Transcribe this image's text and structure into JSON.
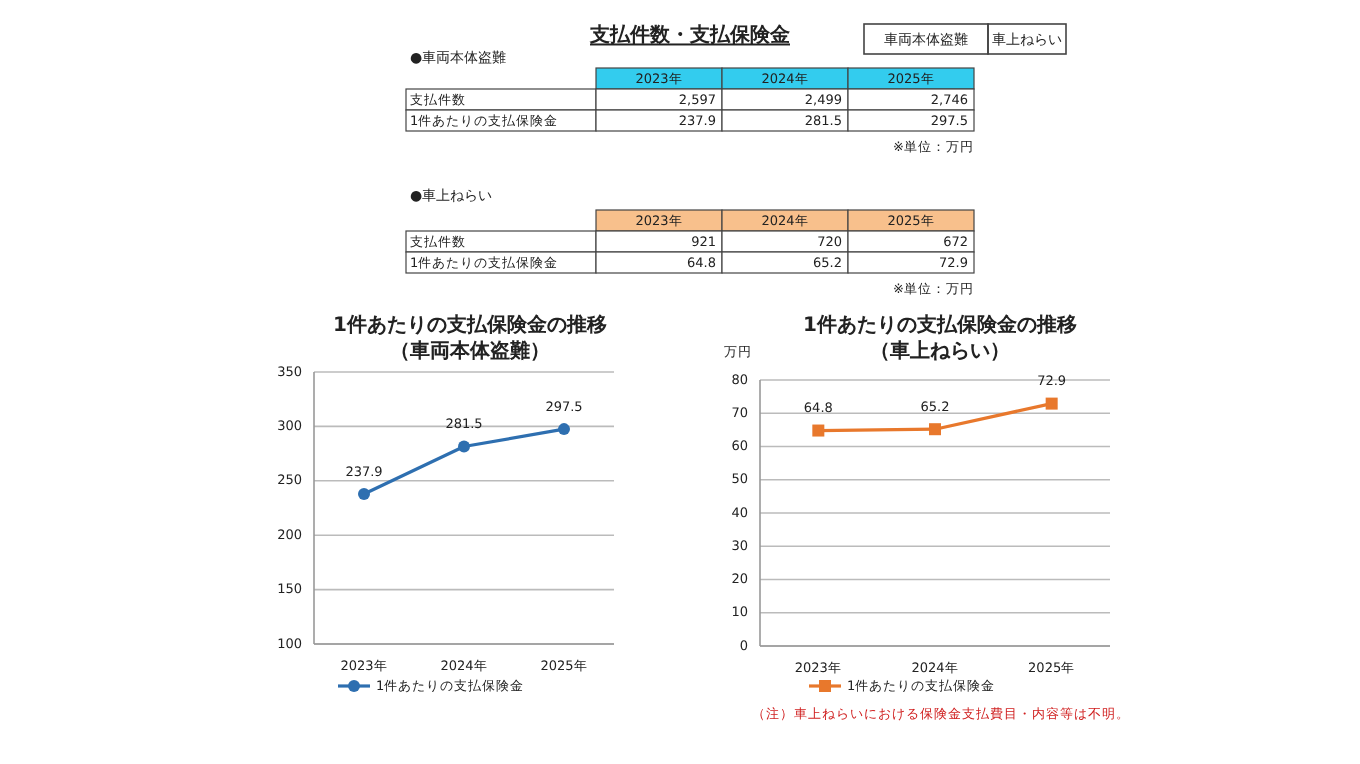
{
  "chart_data": [
    {
      "type": "other",
      "title": "支払件数・支払保険金",
      "annotations": [
        "車両本体盗難",
        "車上ねらい"
      ]
    },
    {
      "type": "other",
      "title": "●車両本体盗難",
      "color": "#33ccee",
      "categories": [
        "2023年",
        "2024年",
        "2025年"
      ],
      "y_categories": [
        "支払件数",
        "1件あたりの支払保険金"
      ],
      "cell_labels": [
        [
          "2,597",
          "2,499",
          "2,746"
        ],
        [
          "237.9",
          "281.5",
          "297.5"
        ]
      ],
      "annotations": [
        "※単位：万円"
      ]
    },
    {
      "type": "other",
      "title": "●車上ねらい",
      "color": "#f8c08c",
      "categories": [
        "2023年",
        "2024年",
        "2025年"
      ],
      "y_categories": [
        "支払件数",
        "1件あたりの支払保険金"
      ],
      "cell_labels": [
        [
          "921",
          "720",
          "672"
        ],
        [
          "64.8",
          "65.2",
          "72.9"
        ]
      ],
      "annotations": [
        "※単位：万円"
      ]
    },
    {
      "type": "line",
      "title": "1件あたりの支払保険金の推移",
      "subtitle": "（車両本体盗難）",
      "categories": [
        "2023年",
        "2024年",
        "2025年"
      ],
      "series": [
        {
          "name": "1件あたりの支払保険金",
          "color": "#2e6fb0",
          "values": [
            237.9,
            281.5,
            297.5
          ]
        }
      ],
      "ylim": [
        100,
        350
      ],
      "yticks": [
        100,
        150,
        200,
        250,
        300,
        350
      ],
      "grid": "y",
      "legend": "bottom",
      "marker": "circle",
      "data_labels": true
    },
    {
      "type": "line",
      "title": "1件あたりの支払保険金の推移",
      "subtitle": "（車上ねらい）",
      "ylabel": "万円",
      "categories": [
        "2023年",
        "2024年",
        "2025年"
      ],
      "series": [
        {
          "name": "1件あたりの支払保険金",
          "color": "#e8782c",
          "values": [
            64.8,
            65.2,
            72.9
          ]
        }
      ],
      "ylim": [
        0,
        80
      ],
      "yticks": [
        0,
        10,
        20,
        30,
        40,
        50,
        60,
        70,
        80
      ],
      "grid": "y",
      "legend": "bottom",
      "marker": "square",
      "data_labels": true,
      "annotations": [
        "（注）車上ねらいにおける保険金支払費目・内容等は不明。"
      ]
    }
  ]
}
